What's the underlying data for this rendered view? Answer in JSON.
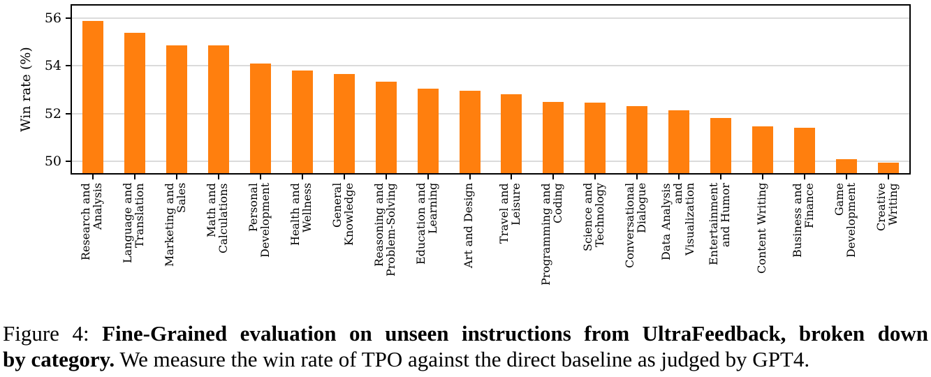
{
  "caption": {
    "line1": {
      "normal": "Figure 4: ",
      "bold": "Fine-Grained evaluation on unseen instructions from UltraFeedback, broken down"
    },
    "line2": {
      "bold": "by category.",
      "normal": " We measure the win rate of TPO against the direct baseline as judged by GPT4."
    }
  },
  "chart_data": {
    "type": "bar",
    "title": "",
    "xlabel": "",
    "ylabel": "Win rate (%)",
    "ylim": [
      49.5,
      56.53
    ],
    "yticks": [
      50,
      52,
      54,
      56
    ],
    "grid": true,
    "legend_position": "none",
    "bar_color": "#ff7f0e",
    "grid_color": "#dbdbdb",
    "axis_color": "#000000",
    "categories": [
      "Research and\nAnalysis",
      "Language and\nTranslation",
      "Marketing and\nSales",
      "Math and\nCalculations",
      "Personal\nDevelopment",
      "Health and\nWellness",
      "General\nKnowledge",
      "Reasoning and\nProblem-Solving",
      "Education and\nLearning",
      "Art and Design",
      "Travel and\nLeisure",
      "Programming and\nCoding",
      "Science and\nTechnology",
      "Conversational\nDialogue",
      "Data Analysis\nand\nVisualization",
      "Entertainment\nand Humor",
      "Content Writing",
      "Business and\nFinance",
      "Game\nDevelopment",
      "Creative\nWriting"
    ],
    "values": [
      55.9,
      55.4,
      54.85,
      54.85,
      54.1,
      53.8,
      53.65,
      53.35,
      53.05,
      52.95,
      52.8,
      52.5,
      52.45,
      52.3,
      52.15,
      51.8,
      51.45,
      51.4,
      50.1,
      49.95
    ]
  }
}
